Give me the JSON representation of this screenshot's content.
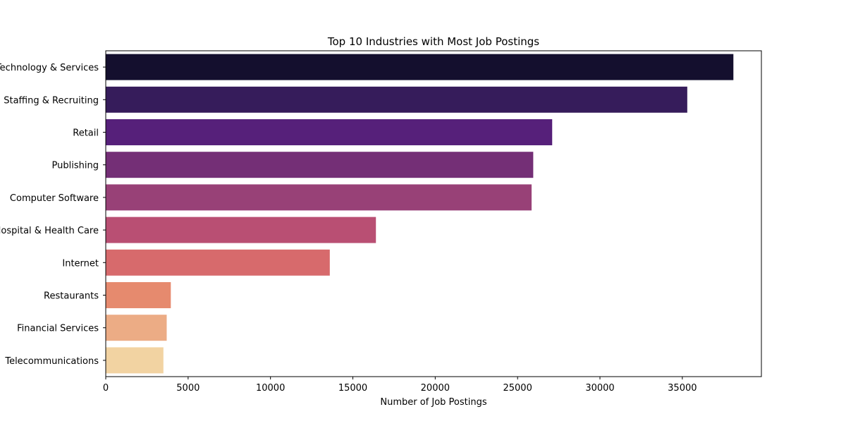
{
  "chart_data": {
    "type": "bar",
    "orientation": "horizontal",
    "title": "Top 10 Industries with Most Job Postings",
    "xlabel": "Number of Job Postings",
    "ylabel": "",
    "xlim": [
      0,
      40000
    ],
    "xticks": [
      0,
      5000,
      10000,
      15000,
      20000,
      25000,
      30000,
      35000
    ],
    "grid": false,
    "categories": [
      "Information Technology & Services",
      "Staffing & Recruiting",
      "Retail",
      "Publishing",
      "Computer Software",
      "Hospital & Health Care",
      "Internet",
      "Restaurants",
      "Financial Services",
      "Telecommunications"
    ],
    "values": [
      38100,
      35300,
      27100,
      25950,
      25850,
      16400,
      13600,
      3950,
      3700,
      3500
    ],
    "colors": [
      "#140f2e",
      "#361c5b",
      "#56207a",
      "#742f76",
      "#984177",
      "#b94f73",
      "#d76a6c",
      "#e68a6e",
      "#ecac85",
      "#f2d3a2"
    ]
  }
}
